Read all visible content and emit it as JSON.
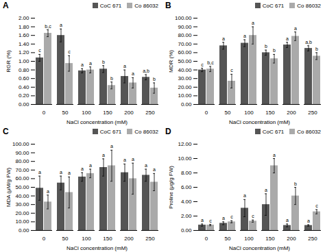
{
  "chart_data": [
    {
      "type": "bar",
      "title": "A",
      "xlabel": "NaCl concentration (mM)",
      "ylabel": "RGR (%)",
      "categories": [
        0,
        50,
        100,
        150,
        200,
        250
      ],
      "series": [
        {
          "name": "CoC 671",
          "color": "#555555",
          "values": [
            1.08,
            1.6,
            0.78,
            0.82,
            0.65,
            0.63
          ],
          "errors": [
            0.08,
            0.15,
            0.05,
            0.08,
            0.15,
            0.06
          ],
          "letters": [
            "c",
            "a",
            "a",
            "b",
            "a",
            "a,b"
          ]
        },
        {
          "name": "Co 86032",
          "color": "#aaaaaa",
          "values": [
            1.65,
            0.95,
            0.8,
            0.44,
            0.5,
            0.38
          ],
          "errors": [
            0.08,
            0.18,
            0.07,
            0.08,
            0.12,
            0.12
          ],
          "letters": [
            "b,c",
            "c",
            "a",
            "b",
            "a",
            "b"
          ]
        }
      ],
      "ylim": [
        0,
        2.0
      ],
      "yticks": [
        {
          "value": 0,
          "label": "0.00"
        },
        {
          "value": 0.2,
          "label": "0.20"
        },
        {
          "value": 0.4,
          "label": "0.40"
        },
        {
          "value": 0.6,
          "label": "0.60"
        },
        {
          "value": 0.8,
          "label": "0.80"
        },
        {
          "value": 1.0,
          "label": "1.00"
        },
        {
          "value": 1.2,
          "label": "1.20"
        },
        {
          "value": 1.4,
          "label": "1.40"
        },
        {
          "value": 1.6,
          "label": "1.60"
        },
        {
          "value": 1.8,
          "label": "1.80"
        },
        {
          "value": 2.0,
          "label": "2.00"
        }
      ],
      "grid": false,
      "legend": "upper right"
    },
    {
      "type": "bar",
      "title": "B",
      "xlabel": "NaCl concentration (mM)",
      "ylabel": "MDR (%)",
      "categories": [
        0,
        50,
        100,
        150,
        200,
        250
      ],
      "series": [
        {
          "name": "CoC 671",
          "color": "#555555",
          "values": [
            40,
            68,
            71,
            60,
            69,
            65
          ],
          "errors": [
            2,
            4,
            4,
            3,
            3,
            3
          ],
          "letters": [
            "c",
            "a",
            "a",
            "b",
            "a",
            "a,b"
          ]
        },
        {
          "name": "Co 86032",
          "color": "#aaaaaa",
          "values": [
            41,
            27,
            80,
            53,
            79,
            56
          ],
          "errors": [
            3,
            8,
            10,
            5,
            5,
            4
          ],
          "letters": [
            "b,c",
            "c",
            "a",
            "b",
            "a",
            "b"
          ]
        }
      ],
      "ylim": [
        0,
        100
      ],
      "yticks": [
        {
          "value": 0,
          "label": "0.00"
        },
        {
          "value": 10,
          "label": "10.00"
        },
        {
          "value": 20,
          "label": "20.00"
        },
        {
          "value": 30,
          "label": "30.00"
        },
        {
          "value": 40,
          "label": "40.00"
        },
        {
          "value": 50,
          "label": "50.00"
        },
        {
          "value": 60,
          "label": "60.00"
        },
        {
          "value": 70,
          "label": "70.00"
        },
        {
          "value": 80,
          "label": "80.00"
        },
        {
          "value": 90,
          "label": "90.00"
        },
        {
          "value": 100,
          "label": "100.00"
        }
      ],
      "grid": false,
      "legend": "upper right"
    },
    {
      "type": "bar",
      "title": "C",
      "xlabel": "NaCl concentration (mM)",
      "ylabel": "MDA (μM/g FW)",
      "categories": [
        0,
        50,
        100,
        150,
        200,
        250
      ],
      "series": [
        {
          "name": "CoC 671",
          "color": "#555555",
          "values": [
            49,
            55,
            62,
            73,
            67,
            64
          ],
          "errors": [
            14,
            8,
            5,
            10,
            10,
            7
          ],
          "letters": [
            "a",
            "a",
            "a",
            "a",
            "a",
            "a"
          ]
        },
        {
          "name": "Co 86032",
          "color": "#aaaaaa",
          "values": [
            33,
            44,
            66,
            75,
            60,
            56
          ],
          "errors": [
            8,
            18,
            5,
            18,
            18,
            10
          ],
          "letters": [
            "a",
            "a",
            "a",
            "a",
            "a",
            "a"
          ]
        }
      ],
      "ylim": [
        0,
        100
      ],
      "yticks": [
        {
          "value": 0,
          "label": "0.00"
        },
        {
          "value": 10,
          "label": "10.00"
        },
        {
          "value": 20,
          "label": "20.00"
        },
        {
          "value": 30,
          "label": "30.00"
        },
        {
          "value": 40,
          "label": "40.00"
        },
        {
          "value": 50,
          "label": "50.00"
        },
        {
          "value": 60,
          "label": "60.00"
        },
        {
          "value": 70,
          "label": "70.00"
        },
        {
          "value": 80,
          "label": "80.00"
        },
        {
          "value": 90,
          "label": "90.00"
        },
        {
          "value": 100,
          "label": "100.00"
        }
      ],
      "grid": false,
      "legend": "upper right"
    },
    {
      "type": "bar",
      "title": "D",
      "xlabel": "NaCl concentration (mM)",
      "ylabel": "Proline (μg/g FW)",
      "categories": [
        0,
        50,
        100,
        150,
        200,
        250
      ],
      "series": [
        {
          "name": "CoC 671",
          "color": "#555555",
          "values": [
            0.75,
            1.0,
            3.1,
            3.6,
            0.7,
            0.7
          ],
          "errors": [
            0.15,
            0.2,
            1.2,
            1.5,
            0.2,
            0.1
          ],
          "letters": [
            "a",
            "a",
            "a",
            "a",
            "a",
            "a"
          ]
        },
        {
          "name": "Co 86032",
          "color": "#aaaaaa",
          "values": [
            0.75,
            1.2,
            1.3,
            9.0,
            4.8,
            2.6
          ],
          "errors": [
            0.1,
            0.15,
            0.15,
            1.0,
            1.2,
            0.3
          ],
          "letters": [
            "c",
            "c",
            "c",
            "a",
            "b",
            "c"
          ]
        }
      ],
      "ylim": [
        0,
        12
      ],
      "yticks": [
        {
          "value": 0,
          "label": "0.00"
        },
        {
          "value": 2,
          "label": "2.00"
        },
        {
          "value": 4,
          "label": "4.00"
        },
        {
          "value": 6,
          "label": "6.00"
        },
        {
          "value": 8,
          "label": "8.00"
        },
        {
          "value": 10,
          "label": "10.00"
        },
        {
          "value": 12,
          "label": "12.00"
        }
      ],
      "grid": false,
      "legend": "upper right"
    }
  ]
}
